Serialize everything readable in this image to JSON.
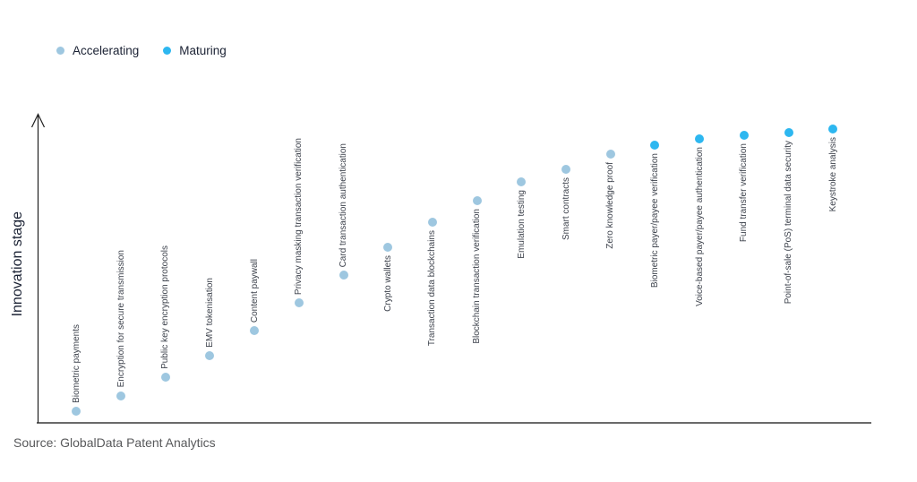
{
  "source_text": "Source: GlobalData Patent Analytics",
  "colors": {
    "accelerating": "#9ec7e0",
    "maturing": "#2db7f0",
    "x_axis": "#6a6a6a",
    "y_axis": "#1f1f1f",
    "point_label_text": "#3e434d",
    "legend_text": "#1a2133",
    "source_text": "#58595b"
  },
  "chart_data": {
    "type": "scatter",
    "title": "",
    "xlabel": "",
    "ylabel": "Innovation stage",
    "x_axis_ticks": [],
    "y_axis_ticks": [],
    "grid": false,
    "legend_position": "top-left",
    "y_axis_style": "arrow",
    "stage_scale_note": "stage is estimated 0-100 innovation progress read from dot height; no numeric axis shown",
    "series": [
      {
        "name": "Accelerating",
        "color": "#9ec7e0"
      },
      {
        "name": "Maturing",
        "color": "#2db7f0"
      }
    ],
    "points": [
      {
        "label": "Biometric payments",
        "series": "Accelerating",
        "stage": 4,
        "label_position": "above"
      },
      {
        "label": "Encryption for secure transmission",
        "series": "Accelerating",
        "stage": 9,
        "label_position": "above"
      },
      {
        "label": "Public key encryption protocols",
        "series": "Accelerating",
        "stage": 15,
        "label_position": "above"
      },
      {
        "label": "EMV tokenisation",
        "series": "Accelerating",
        "stage": 22,
        "label_position": "above"
      },
      {
        "label": "Content paywall",
        "series": "Accelerating",
        "stage": 30,
        "label_position": "above"
      },
      {
        "label": "Privacy masking transaction verification",
        "series": "Accelerating",
        "stage": 39,
        "label_position": "above"
      },
      {
        "label": "Card transaction authentication",
        "series": "Accelerating",
        "stage": 48,
        "label_position": "above"
      },
      {
        "label": "Crypto wallets",
        "series": "Accelerating",
        "stage": 57,
        "label_position": "below"
      },
      {
        "label": "Transaction data blockchains",
        "series": "Accelerating",
        "stage": 65,
        "label_position": "below"
      },
      {
        "label": "Blockchain transaction verification",
        "series": "Accelerating",
        "stage": 72,
        "label_position": "below"
      },
      {
        "label": "Emulation testing",
        "series": "Accelerating",
        "stage": 78,
        "label_position": "below"
      },
      {
        "label": "Smart contracts",
        "series": "Accelerating",
        "stage": 82,
        "label_position": "below"
      },
      {
        "label": "Zero knowledge proof",
        "series": "Accelerating",
        "stage": 87,
        "label_position": "below"
      },
      {
        "label": "Biometric payer/payee verification",
        "series": "Maturing",
        "stage": 90,
        "label_position": "below"
      },
      {
        "label": "Voice-based payer/payee authentication",
        "series": "Maturing",
        "stage": 92,
        "label_position": "below"
      },
      {
        "label": "Fund transfer verification",
        "series": "Maturing",
        "stage": 93,
        "label_position": "below"
      },
      {
        "label": "Point-of-sale (PoS) terminal data security",
        "series": "Maturing",
        "stage": 94,
        "label_position": "below"
      },
      {
        "label": "Keystroke analysis",
        "series": "Maturing",
        "stage": 95,
        "label_position": "below"
      }
    ]
  }
}
